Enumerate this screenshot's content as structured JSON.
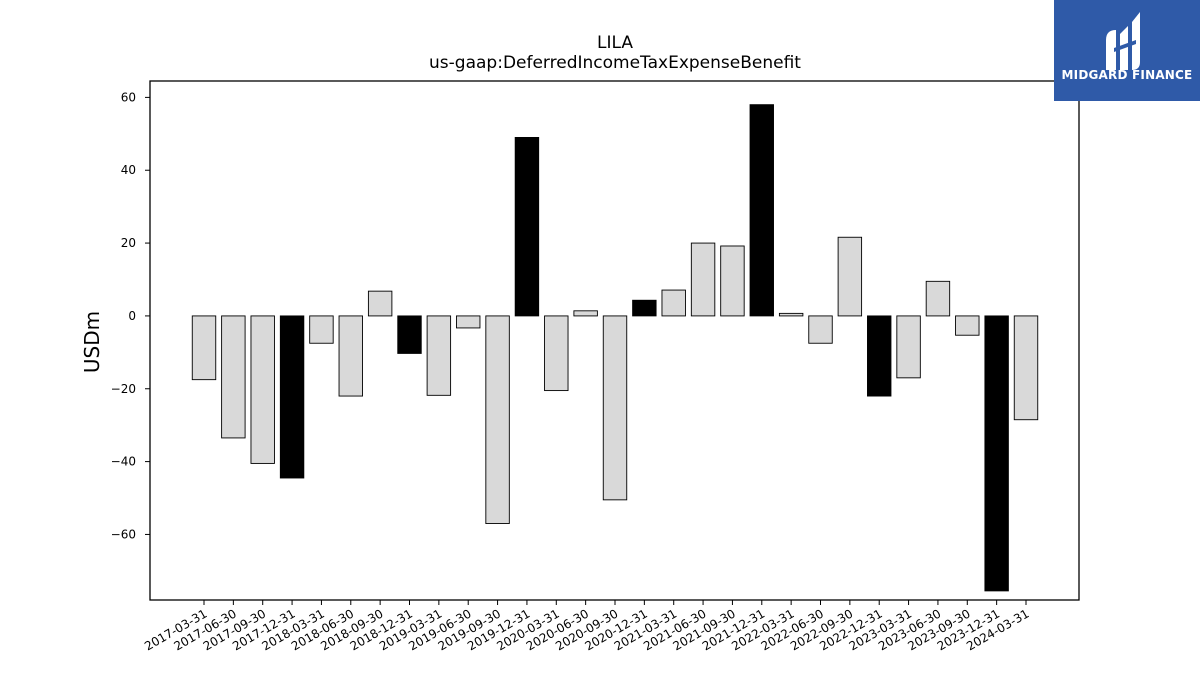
{
  "chart_data": {
    "type": "bar",
    "title": "LILA",
    "subtitle": "us-gaap:DeferredIncomeTaxExpenseBenefit",
    "xlabel": "",
    "ylabel": "USDm",
    "ylim": [
      -78,
      64.5
    ],
    "yticks": [
      60,
      40,
      20,
      0,
      -20,
      -40,
      -60
    ],
    "ytick_labels": [
      "60",
      "40",
      "20",
      "0",
      "−20",
      "−40",
      "−60"
    ],
    "grid": false,
    "categories": [
      "2017-03-31",
      "2017-06-30",
      "2017-09-30",
      "2017-12-31",
      "2018-03-31",
      "2018-06-30",
      "2018-09-30",
      "2018-12-31",
      "2019-03-31",
      "2019-06-30",
      "2019-09-30",
      "2019-12-31",
      "2020-03-31",
      "2020-06-30",
      "2020-09-30",
      "2020-12-31",
      "2021-03-31",
      "2021-06-30",
      "2021-09-30",
      "2021-12-31",
      "2022-03-31",
      "2022-06-30",
      "2022-09-30",
      "2022-12-31",
      "2023-03-31",
      "2023-06-30",
      "2023-09-30",
      "2023-12-31",
      "2024-03-31"
    ],
    "values": [
      -17.5,
      -33.5,
      -40.5,
      -44.5,
      -7.5,
      -22,
      6.8,
      -10.3,
      -21.8,
      -3.3,
      -57,
      49,
      -20.5,
      1.4,
      -50.5,
      4.3,
      7.1,
      20,
      19.2,
      58,
      0.7,
      -7.5,
      21.6,
      -22,
      -17,
      9.5,
      -5.3,
      -75.5,
      -28.5
    ],
    "highlight": [
      false,
      false,
      false,
      true,
      false,
      false,
      false,
      true,
      false,
      false,
      false,
      true,
      false,
      false,
      false,
      true,
      false,
      false,
      false,
      true,
      false,
      false,
      false,
      true,
      false,
      false,
      false,
      true,
      false
    ],
    "colors": {
      "bar": "#d9d9d9",
      "highlight": "#000000",
      "edge": "#000000"
    }
  },
  "logo": {
    "text": "MIDGARD FINANCE",
    "background": "#2f5aa8"
  }
}
